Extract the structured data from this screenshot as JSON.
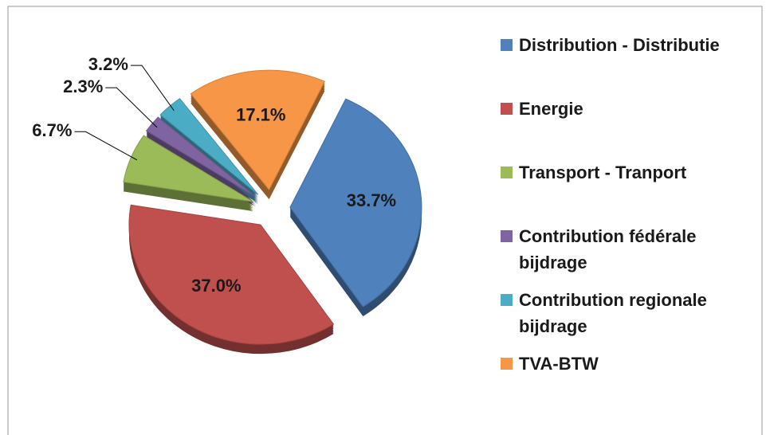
{
  "chart_data": {
    "type": "pie",
    "categories": [
      "Distribution - Distributie",
      "Energie",
      "Transport - Tranport",
      "Contribution fédérale bijdrage",
      "Contribution regionale bijdrage",
      "TVA-BTW"
    ],
    "values": [
      33.7,
      37.0,
      6.7,
      2.3,
      3.2,
      17.1
    ],
    "value_labels": [
      "33.7%",
      "37.0%",
      "6.7%",
      "2.3%",
      "3.2%",
      "17.1%"
    ],
    "colors": [
      "#4f81bd",
      "#c0504d",
      "#9bbb59",
      "#8064a2",
      "#4bacc6",
      "#f79646"
    ],
    "legend": "right"
  }
}
